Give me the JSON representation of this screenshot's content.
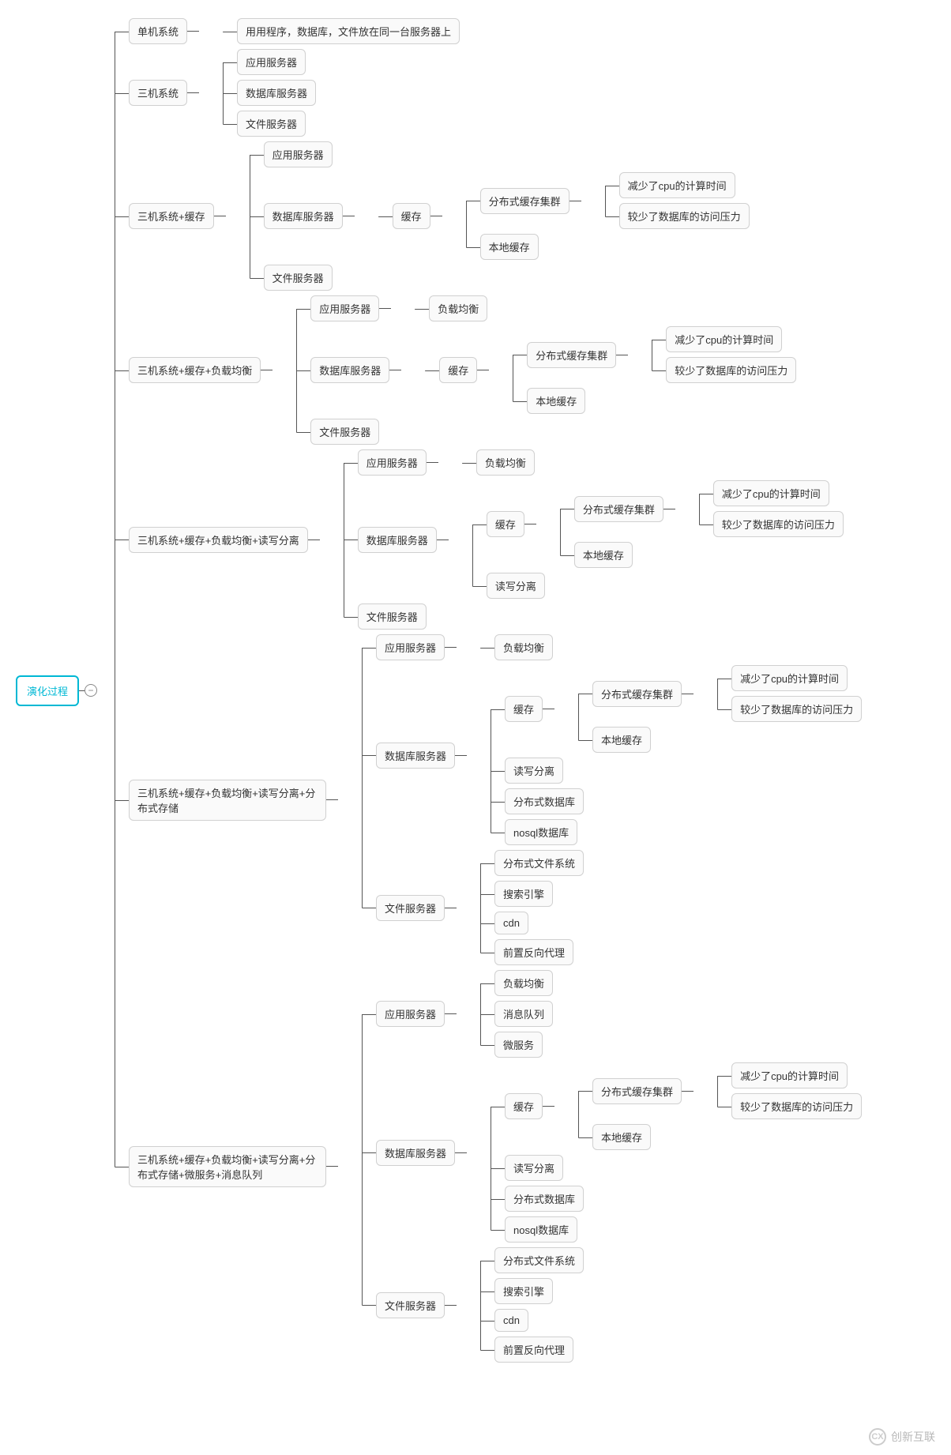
{
  "diagram": {
    "type": "mindmap-tree",
    "direction": "right",
    "background_color": "#ffffff",
    "node_style": {
      "border_color": "#d0d0d0",
      "border_radius": 6,
      "background": "#fafafa",
      "font_size": 13,
      "text_color": "#333333",
      "padding": "6px 10px"
    },
    "root_style": {
      "border_color": "#00b8d4",
      "text_color": "#00b8d4",
      "border_width": 2
    },
    "connector_color": "#555555",
    "connector_width": 1.5
  },
  "root": {
    "label": "演化过程",
    "collapse_icon": "−"
  },
  "stages": [
    {
      "label": "单机系统",
      "children": [
        {
          "label": "用用程序，数据库，文件放在同一台服务器上"
        }
      ]
    },
    {
      "label": "三机系统",
      "children": [
        {
          "label": "应用服务器"
        },
        {
          "label": "数据库服务器"
        },
        {
          "label": "文件服务器"
        }
      ]
    },
    {
      "label": "三机系统+缓存",
      "children": [
        {
          "label": "应用服务器"
        },
        {
          "label": "数据库服务器",
          "children": [
            {
              "label": "缓存",
              "children": [
                {
                  "label": "分布式缓存集群",
                  "children": [
                    {
                      "label": "减少了cpu的计算时间"
                    },
                    {
                      "label": "较少了数据库的访问压力"
                    }
                  ]
                },
                {
                  "label": "本地缓存"
                }
              ]
            }
          ]
        },
        {
          "label": "文件服务器"
        }
      ]
    },
    {
      "label": "三机系统+缓存+负载均衡",
      "children": [
        {
          "label": "应用服务器",
          "children": [
            {
              "label": "负载均衡"
            }
          ]
        },
        {
          "label": "数据库服务器",
          "children": [
            {
              "label": "缓存",
              "children": [
                {
                  "label": "分布式缓存集群",
                  "children": [
                    {
                      "label": "减少了cpu的计算时间"
                    },
                    {
                      "label": "较少了数据库的访问压力"
                    }
                  ]
                },
                {
                  "label": "本地缓存"
                }
              ]
            }
          ]
        },
        {
          "label": "文件服务器"
        }
      ]
    },
    {
      "label": "三机系统+缓存+负载均衡+读写分离",
      "children": [
        {
          "label": "应用服务器",
          "children": [
            {
              "label": "负载均衡"
            }
          ]
        },
        {
          "label": "数据库服务器",
          "children": [
            {
              "label": "缓存",
              "children": [
                {
                  "label": "分布式缓存集群",
                  "children": [
                    {
                      "label": "减少了cpu的计算时间"
                    },
                    {
                      "label": "较少了数据库的访问压力"
                    }
                  ]
                },
                {
                  "label": "本地缓存"
                }
              ]
            },
            {
              "label": "读写分离"
            }
          ]
        },
        {
          "label": "文件服务器"
        }
      ]
    },
    {
      "label": "三机系统+缓存+负载均衡+读写分离+分布式存储",
      "children": [
        {
          "label": "应用服务器",
          "children": [
            {
              "label": "负载均衡"
            }
          ]
        },
        {
          "label": "数据库服务器",
          "children": [
            {
              "label": "缓存",
              "children": [
                {
                  "label": "分布式缓存集群",
                  "children": [
                    {
                      "label": "减少了cpu的计算时间"
                    },
                    {
                      "label": "较少了数据库的访问压力"
                    }
                  ]
                },
                {
                  "label": "本地缓存"
                }
              ]
            },
            {
              "label": "读写分离"
            },
            {
              "label": "分布式数据库"
            },
            {
              "label": "nosql数据库"
            }
          ]
        },
        {
          "label": "文件服务器",
          "children": [
            {
              "label": "分布式文件系统"
            },
            {
              "label": "搜索引擎"
            },
            {
              "label": "cdn"
            },
            {
              "label": "前置反向代理"
            }
          ]
        }
      ]
    },
    {
      "label": "三机系统+缓存+负载均衡+读写分离+分布式存储+微服务+消息队列",
      "children": [
        {
          "label": "应用服务器",
          "children": [
            {
              "label": "负载均衡"
            },
            {
              "label": "消息队列"
            },
            {
              "label": "微服务"
            }
          ]
        },
        {
          "label": "数据库服务器",
          "children": [
            {
              "label": "缓存",
              "children": [
                {
                  "label": "分布式缓存集群",
                  "children": [
                    {
                      "label": "减少了cpu的计算时间"
                    },
                    {
                      "label": "较少了数据库的访问压力"
                    }
                  ]
                },
                {
                  "label": "本地缓存"
                }
              ]
            },
            {
              "label": "读写分离"
            },
            {
              "label": "分布式数据库"
            },
            {
              "label": "nosql数据库"
            }
          ]
        },
        {
          "label": "文件服务器",
          "children": [
            {
              "label": "分布式文件系统"
            },
            {
              "label": "搜索引擎"
            },
            {
              "label": "cdn"
            },
            {
              "label": "前置反向代理"
            }
          ]
        }
      ]
    }
  ],
  "watermark": {
    "logo_text": "CX",
    "text": "创新互联"
  }
}
